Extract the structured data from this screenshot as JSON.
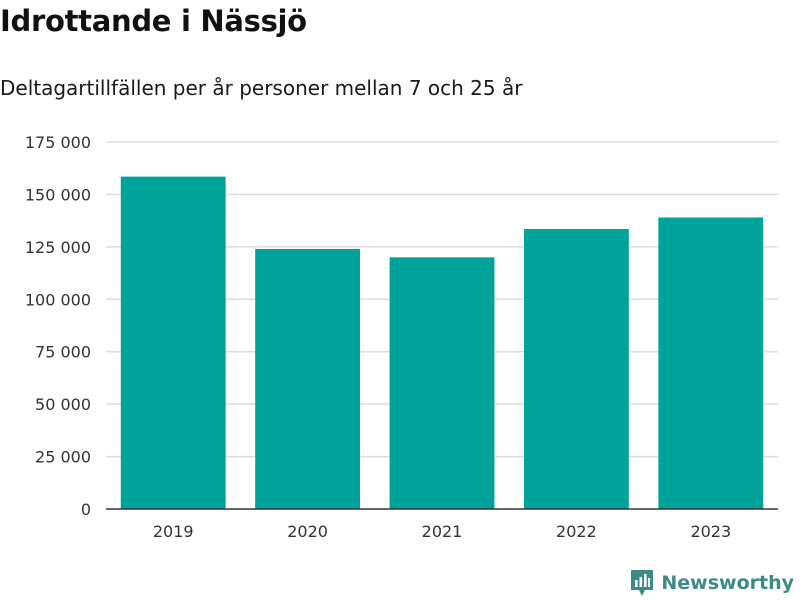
{
  "title": "Idrottande i Nässjö",
  "subtitle": "Deltagartillfällen per år personer mellan 7 och 25 år",
  "brand": {
    "label": "Newsworthy",
    "icon": "newsworthy-logo-icon",
    "color": "#3d8a87"
  },
  "colors": {
    "bar": "#00a39a",
    "grid": "#dddddd",
    "axis": "#333333",
    "tick_text": "#333333"
  },
  "chart_data": {
    "type": "bar",
    "categories": [
      "2019",
      "2020",
      "2021",
      "2022",
      "2023"
    ],
    "values": [
      158500,
      124000,
      120000,
      133500,
      139000
    ],
    "ylim": [
      0,
      175000
    ],
    "yticks": [
      0,
      25000,
      50000,
      75000,
      100000,
      125000,
      150000,
      175000
    ],
    "ytick_labels": [
      "0",
      "25 000",
      "50 000",
      "75 000",
      "100 000",
      "125 000",
      "150 000",
      "175 000"
    ],
    "grid": true,
    "legend": "none"
  }
}
